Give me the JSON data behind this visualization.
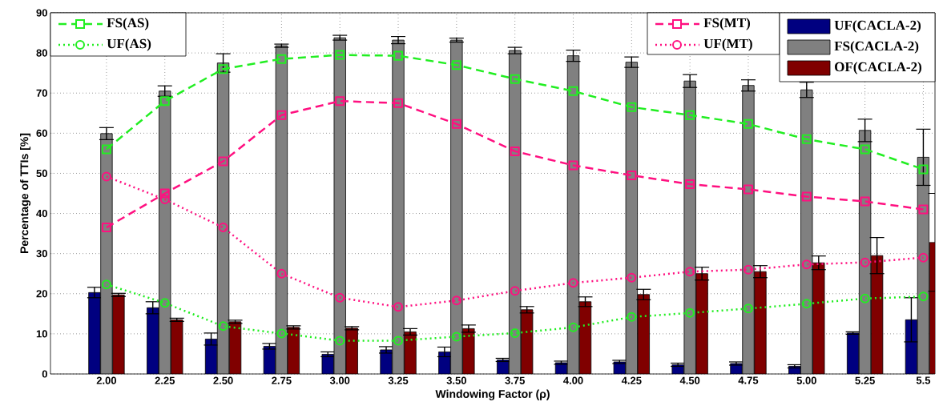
{
  "chart_data": {
    "type": "bar",
    "xlabel": "Windowing Factor (ρ)",
    "ylabel": "Percentage of TTIs [%]",
    "categories": [
      "2.00",
      "2.25",
      "2.50",
      "2.75",
      "3.00",
      "3.25",
      "3.50",
      "3.75",
      "4.00",
      "4.25",
      "4.50",
      "4.75",
      "5.00",
      "5.25",
      "5.5"
    ],
    "ylim": [
      0,
      90
    ],
    "yticks": [
      0,
      10,
      20,
      30,
      40,
      50,
      60,
      70,
      80,
      90
    ],
    "grid": true,
    "legend": "top",
    "series": [
      {
        "name": "UF(CACLA-2)",
        "color": "#000080",
        "values": [
          20.3,
          16.5,
          8.7,
          6.9,
          4.9,
          6.0,
          5.5,
          3.5,
          2.8,
          3.0,
          2.3,
          2.6,
          1.9,
          10.2,
          13.5
        ],
        "errors": [
          1.3,
          1.5,
          1.5,
          0.7,
          0.6,
          0.8,
          1.2,
          0.4,
          0.4,
          0.4,
          0.4,
          0.4,
          0.4,
          0.3,
          5.5
        ]
      },
      {
        "name": "FS(CACLA-2)",
        "color": "#808080",
        "values": [
          59.9,
          70.5,
          77.5,
          81.8,
          83.8,
          83.2,
          83.2,
          80.6,
          79.3,
          77.7,
          73.0,
          71.9,
          70.8,
          60.7,
          54.0
        ],
        "errors": [
          1.5,
          1.3,
          2.3,
          0.4,
          0.6,
          0.9,
          0.5,
          0.8,
          1.4,
          1.3,
          1.6,
          1.4,
          1.9,
          2.8,
          7.0
        ]
      },
      {
        "name": "OF(CACLA-2)",
        "color": "#800000",
        "values": [
          19.7,
          13.5,
          13.0,
          11.6,
          11.4,
          10.5,
          11.3,
          16.0,
          18.0,
          19.8,
          25.0,
          25.5,
          27.7,
          29.5,
          32.8
        ],
        "errors": [
          0.4,
          0.4,
          0.4,
          0.4,
          0.4,
          0.8,
          0.9,
          0.8,
          1.2,
          1.3,
          1.6,
          1.5,
          1.7,
          4.5,
          12.2
        ]
      },
      {
        "name": "FS(AS)",
        "type": "line",
        "color": "#22ee22",
        "marker": "square",
        "line_style": "dashed",
        "values": [
          56,
          68,
          76,
          78.5,
          79.5,
          79.3,
          77,
          73.5,
          70.5,
          66.5,
          64.5,
          62.3,
          58.5,
          56,
          51
        ]
      },
      {
        "name": "UF(AS)",
        "type": "line",
        "color": "#22ee22",
        "marker": "circle",
        "line_style": "dotted",
        "values": [
          22.3,
          17.7,
          11.9,
          10.1,
          8.3,
          8.3,
          9.3,
          10.2,
          11.6,
          14.2,
          15.2,
          16.3,
          17.5,
          18.8,
          19.3
        ]
      },
      {
        "name": "FS(MT)",
        "type": "line",
        "color": "#ff1080",
        "marker": "square",
        "line_style": "dashed",
        "values": [
          36.5,
          45,
          53,
          64.5,
          68,
          67.5,
          62.3,
          55.5,
          52,
          49.5,
          47.3,
          46,
          44.2,
          43,
          41
        ]
      },
      {
        "name": "UF(MT)",
        "type": "line",
        "color": "#ff1080",
        "marker": "circle",
        "line_style": "dotted",
        "values": [
          49.2,
          43.5,
          36.5,
          25,
          19,
          16.7,
          18.3,
          20.7,
          22.7,
          24,
          25.5,
          26,
          27.3,
          27.8,
          29
        ]
      }
    ]
  }
}
